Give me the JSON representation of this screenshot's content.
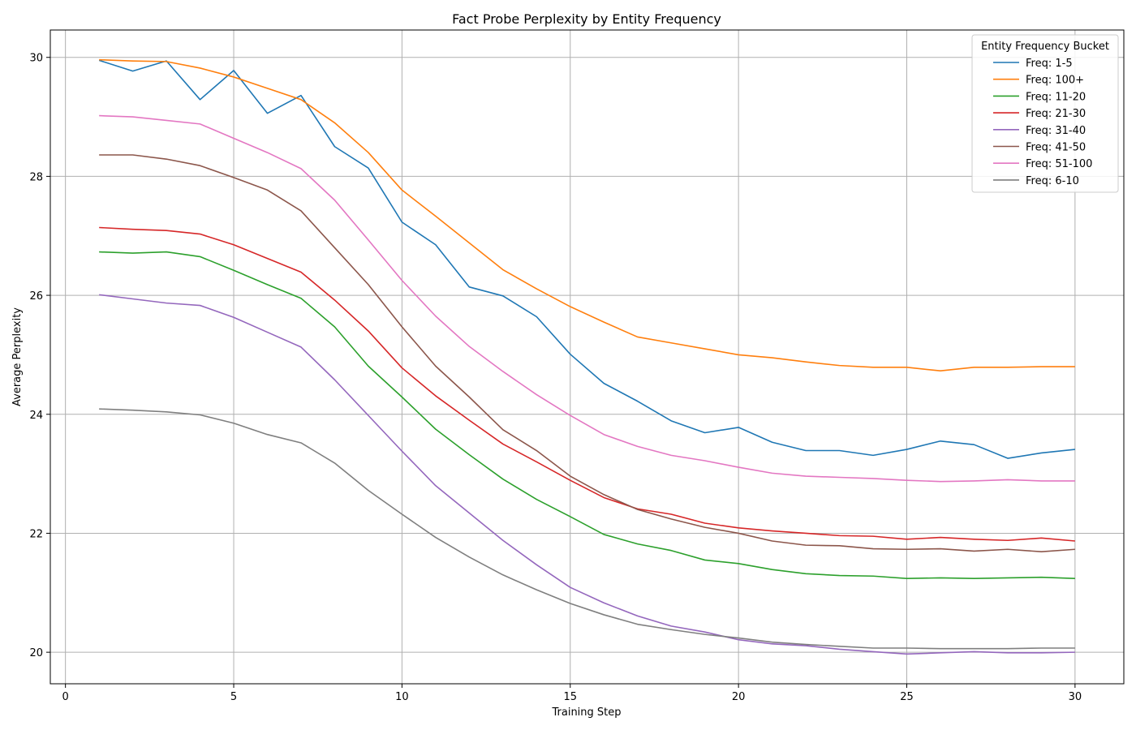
{
  "chart_data": {
    "type": "line",
    "title": "Fact Probe Perplexity by Entity Frequency",
    "xlabel": "Training Step",
    "ylabel": "Average Perplexity",
    "xlim": [
      -0.45,
      31.45
    ],
    "ylim": [
      19.47,
      30.46
    ],
    "x_ticks": [
      0,
      5,
      10,
      15,
      20,
      25,
      30
    ],
    "y_ticks": [
      20,
      22,
      24,
      26,
      28,
      30
    ],
    "grid": true,
    "legend": {
      "title": "Entity Frequency Bucket",
      "position": "top-right"
    },
    "x": [
      1,
      2,
      3,
      4,
      5,
      6,
      7,
      8,
      9,
      10,
      11,
      12,
      13,
      14,
      15,
      16,
      17,
      18,
      19,
      20,
      21,
      22,
      23,
      24,
      25,
      26,
      27,
      28,
      29,
      30
    ],
    "series": [
      {
        "name": "Freq: 1-5",
        "color": "#1f77b4",
        "values": [
          29.95,
          29.77,
          29.94,
          29.29,
          29.78,
          29.06,
          29.36,
          28.5,
          28.14,
          27.23,
          26.85,
          26.14,
          25.99,
          25.64,
          25.01,
          24.52,
          24.22,
          23.89,
          23.69,
          23.78,
          23.53,
          23.39,
          23.39,
          23.31,
          23.41,
          23.55,
          23.49,
          23.26,
          23.35,
          23.41
        ]
      },
      {
        "name": "Freq: 100+",
        "color": "#ff7f0e",
        "values": [
          29.96,
          29.94,
          29.93,
          29.82,
          29.67,
          29.48,
          29.29,
          28.9,
          28.4,
          27.77,
          27.33,
          26.88,
          26.43,
          26.11,
          25.81,
          25.55,
          25.3,
          25.2,
          25.1,
          25.0,
          24.95,
          24.88,
          24.82,
          24.79,
          24.79,
          24.73,
          24.79,
          24.79,
          24.8,
          24.8
        ]
      },
      {
        "name": "Freq: 11-20",
        "color": "#2ca02c",
        "values": [
          26.73,
          26.71,
          26.73,
          26.65,
          26.42,
          26.18,
          25.95,
          25.47,
          24.81,
          24.29,
          23.75,
          23.32,
          22.91,
          22.57,
          22.28,
          21.98,
          21.82,
          21.71,
          21.55,
          21.49,
          21.39,
          21.32,
          21.29,
          21.28,
          21.24,
          21.25,
          21.24,
          21.25,
          21.26,
          21.24
        ]
      },
      {
        "name": "Freq: 21-30",
        "color": "#d62728",
        "values": [
          27.14,
          27.11,
          27.09,
          27.03,
          26.85,
          26.62,
          26.39,
          25.92,
          25.4,
          24.78,
          24.31,
          23.9,
          23.5,
          23.2,
          22.89,
          22.6,
          22.41,
          22.32,
          22.17,
          22.09,
          22.04,
          22.0,
          21.96,
          21.95,
          21.9,
          21.93,
          21.9,
          21.88,
          21.92,
          21.87
        ]
      },
      {
        "name": "Freq: 31-40",
        "color": "#9467bd",
        "values": [
          26.01,
          25.94,
          25.87,
          25.83,
          25.63,
          25.38,
          25.13,
          24.58,
          23.98,
          23.38,
          22.8,
          22.34,
          21.88,
          21.47,
          21.09,
          20.83,
          20.61,
          20.44,
          20.34,
          20.21,
          20.14,
          20.11,
          20.05,
          20.01,
          19.97,
          19.99,
          20.01,
          19.99,
          19.99,
          20.0
        ]
      },
      {
        "name": "Freq: 41-50",
        "color": "#8c564b",
        "values": [
          28.36,
          28.36,
          28.29,
          28.18,
          27.98,
          27.77,
          27.42,
          26.8,
          26.18,
          25.47,
          24.81,
          24.29,
          23.74,
          23.39,
          22.96,
          22.65,
          22.4,
          22.24,
          22.1,
          22.0,
          21.87,
          21.8,
          21.79,
          21.74,
          21.73,
          21.74,
          21.7,
          21.73,
          21.69,
          21.73
        ]
      },
      {
        "name": "Freq: 51-100",
        "color": "#e377c2",
        "values": [
          29.02,
          29.0,
          28.94,
          28.88,
          28.64,
          28.4,
          28.13,
          27.6,
          26.93,
          26.25,
          25.65,
          25.14,
          24.72,
          24.33,
          23.98,
          23.66,
          23.46,
          23.31,
          23.22,
          23.11,
          23.01,
          22.96,
          22.94,
          22.92,
          22.89,
          22.87,
          22.88,
          22.9,
          22.88,
          22.88
        ]
      },
      {
        "name": "Freq: 6-10",
        "color": "#7f7f7f",
        "values": [
          24.09,
          24.07,
          24.04,
          23.99,
          23.85,
          23.66,
          23.52,
          23.18,
          22.72,
          22.32,
          21.93,
          21.6,
          21.3,
          21.05,
          20.82,
          20.63,
          20.47,
          20.38,
          20.3,
          20.24,
          20.17,
          20.13,
          20.1,
          20.07,
          20.07,
          20.06,
          20.06,
          20.06,
          20.07,
          20.07
        ]
      }
    ]
  }
}
